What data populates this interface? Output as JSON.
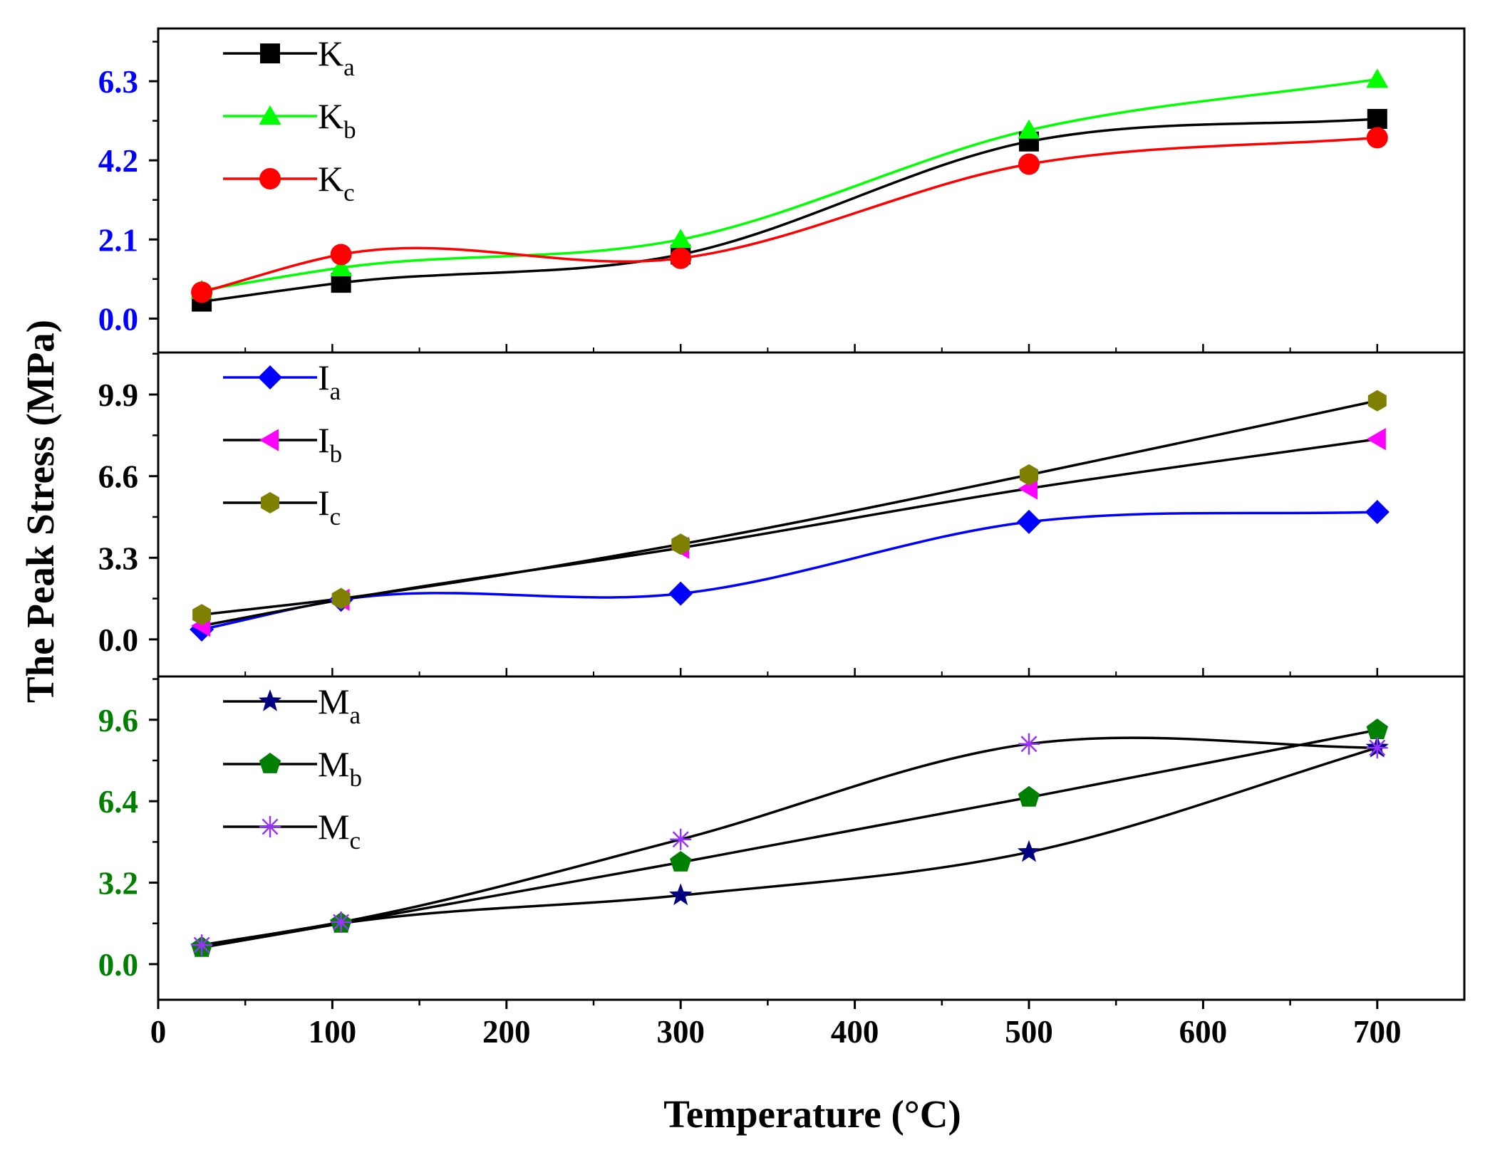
{
  "chart_data": {
    "type": "line",
    "xlabel": "Temperature (°C)",
    "ylabel": "The Peak Stress (MPa)",
    "xlim": [
      0,
      750
    ],
    "xticks": [
      0,
      100,
      200,
      300,
      400,
      500,
      600,
      700
    ],
    "x": [
      25,
      105,
      300,
      500,
      700
    ],
    "panels": [
      {
        "ylim": [
          -0.9,
          7.7
        ],
        "yticks": [
          0.0,
          2.1,
          4.2,
          6.3
        ],
        "tick_labels": [
          "0.0",
          "2.1",
          "4.2",
          "6.3"
        ],
        "tick_color": "#0000ff",
        "series": [
          {
            "name": "K",
            "sub": "a",
            "color": "#000000",
            "line": "#000000",
            "marker": "square",
            "values": [
              0.45,
              0.95,
              1.7,
              4.7,
              5.3
            ]
          },
          {
            "name": "K",
            "sub": "b",
            "color": "#00ff00",
            "line": "#00ff00",
            "marker": "triangle-up",
            "values": [
              0.75,
              1.35,
              2.1,
              5.0,
              6.35
            ]
          },
          {
            "name": "K",
            "sub": "c",
            "color": "#ff0000",
            "line": "#ff0000",
            "marker": "circle",
            "values": [
              0.7,
              1.7,
              1.6,
              4.1,
              4.8
            ]
          }
        ]
      },
      {
        "ylim": [
          -1.5,
          11.6
        ],
        "yticks": [
          0.0,
          3.3,
          6.6,
          9.9
        ],
        "tick_labels": [
          "0.0",
          "3.3",
          "6.6",
          "9.9"
        ],
        "tick_color": "#000000",
        "series": [
          {
            "name": "I",
            "sub": "a",
            "color": "#0000ff",
            "line": "#0000ff",
            "marker": "diamond",
            "values": [
              0.4,
              1.6,
              1.85,
              4.75,
              5.15
            ]
          },
          {
            "name": "I",
            "sub": "b",
            "color": "#ff00ff",
            "line": "#000000",
            "marker": "triangle-left",
            "values": [
              0.55,
              1.6,
              3.7,
              6.1,
              8.1
            ]
          },
          {
            "name": "I",
            "sub": "c",
            "color": "#808000",
            "line": "#000000",
            "marker": "hexagon",
            "values": [
              1.0,
              1.65,
              3.85,
              6.65,
              9.65
            ]
          }
        ]
      },
      {
        "ylim": [
          -1.4,
          11.3
        ],
        "yticks": [
          0.0,
          3.2,
          6.4,
          9.6
        ],
        "tick_labels": [
          "0.0",
          "3.2",
          "6.4",
          "9.6"
        ],
        "tick_color": "#008000",
        "series": [
          {
            "name": "M",
            "sub": "a",
            "color": "#000080",
            "line": "#000000",
            "marker": "star",
            "values": [
              0.65,
              1.6,
              2.7,
              4.4,
              8.5
            ]
          },
          {
            "name": "M",
            "sub": "b",
            "color": "#008000",
            "line": "#000000",
            "marker": "pentagon",
            "values": [
              0.65,
              1.6,
              4.0,
              6.55,
              9.2
            ]
          },
          {
            "name": "M",
            "sub": "c",
            "color": "#9933ff",
            "line": "#000000",
            "marker": "asterisk",
            "values": [
              0.75,
              1.65,
              4.9,
              8.65,
              8.5
            ]
          }
        ]
      }
    ]
  }
}
